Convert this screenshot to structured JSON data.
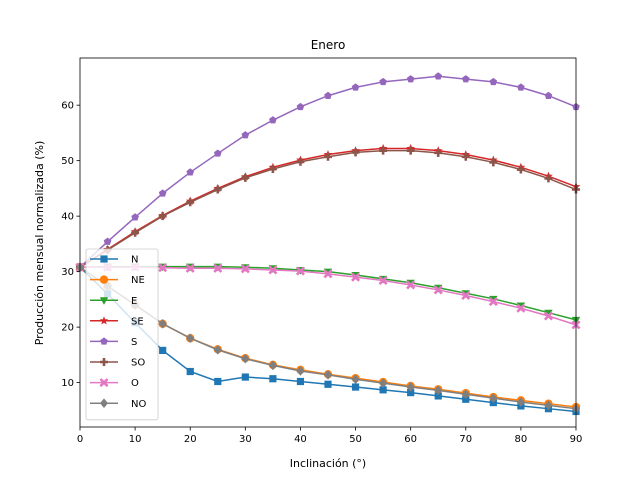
{
  "chart_data": {
    "type": "line",
    "title": "Enero",
    "xlabel": "Inclinación (°)",
    "ylabel": "Producción mensual normalizada (%)",
    "xlim": [
      0,
      90
    ],
    "ylim": [
      2,
      68.5
    ],
    "xticks": [
      0,
      10,
      20,
      30,
      40,
      50,
      60,
      70,
      80,
      90
    ],
    "yticks": [
      10,
      20,
      30,
      40,
      50,
      60
    ],
    "grid": false,
    "legend_position": "lower-left",
    "x": [
      0,
      5,
      10,
      15,
      20,
      25,
      30,
      35,
      40,
      45,
      50,
      55,
      60,
      65,
      70,
      75,
      80,
      85,
      90
    ],
    "series": [
      {
        "name": "N",
        "color": "#1f77b4",
        "marker": "square",
        "values": [
          30.8,
          26.0,
          20.8,
          15.8,
          12.0,
          10.2,
          11.0,
          10.7,
          10.2,
          9.7,
          9.2,
          8.7,
          8.2,
          7.6,
          7.0,
          6.4,
          5.8,
          5.3,
          4.8
        ]
      },
      {
        "name": "NE",
        "color": "#ff7f0e",
        "marker": "circle",
        "values": [
          30.8,
          27.4,
          24.0,
          20.6,
          18.0,
          16.0,
          14.4,
          13.2,
          12.3,
          11.5,
          10.8,
          10.1,
          9.4,
          8.8,
          8.1,
          7.4,
          6.8,
          6.2,
          5.6
        ]
      },
      {
        "name": "E",
        "color": "#2ca02c",
        "marker": "triangle-down",
        "values": [
          30.8,
          30.9,
          30.9,
          30.9,
          30.9,
          30.9,
          30.8,
          30.6,
          30.3,
          30.0,
          29.4,
          28.7,
          28.0,
          27.1,
          26.1,
          25.1,
          23.9,
          22.6,
          21.3
        ]
      },
      {
        "name": "SE",
        "color": "#d62728",
        "marker": "star",
        "values": [
          30.8,
          34.0,
          37.2,
          40.1,
          42.7,
          45.0,
          47.1,
          48.8,
          50.1,
          51.1,
          51.8,
          52.2,
          52.2,
          51.8,
          51.1,
          50.1,
          48.8,
          47.2,
          45.3
        ]
      },
      {
        "name": "S",
        "color": "#9467bd",
        "marker": "pentagon",
        "values": [
          30.8,
          35.4,
          39.8,
          44.1,
          47.9,
          51.3,
          54.6,
          57.3,
          59.7,
          61.7,
          63.2,
          64.2,
          64.7,
          65.2,
          64.7,
          64.2,
          63.2,
          61.7,
          59.7
        ]
      },
      {
        "name": "SO",
        "color": "#8c564b",
        "marker": "plus",
        "values": [
          30.8,
          33.9,
          37.0,
          40.0,
          42.5,
          44.8,
          46.9,
          48.5,
          49.8,
          50.7,
          51.5,
          51.8,
          51.8,
          51.4,
          50.7,
          49.7,
          48.4,
          46.8,
          44.8
        ]
      },
      {
        "name": "O",
        "color": "#e377c2",
        "marker": "x",
        "values": [
          30.8,
          30.8,
          30.8,
          30.7,
          30.6,
          30.6,
          30.5,
          30.3,
          30.1,
          29.6,
          29.0,
          28.4,
          27.6,
          26.7,
          25.7,
          24.6,
          23.4,
          22.0,
          20.4
        ]
      },
      {
        "name": "NO",
        "color": "#7f7f7f",
        "marker": "diamond",
        "values": [
          30.8,
          27.4,
          24.0,
          20.6,
          18.0,
          15.9,
          14.3,
          13.1,
          12.1,
          11.4,
          10.6,
          9.9,
          9.2,
          8.6,
          7.9,
          7.2,
          6.5,
          5.9,
          5.3
        ]
      }
    ]
  }
}
